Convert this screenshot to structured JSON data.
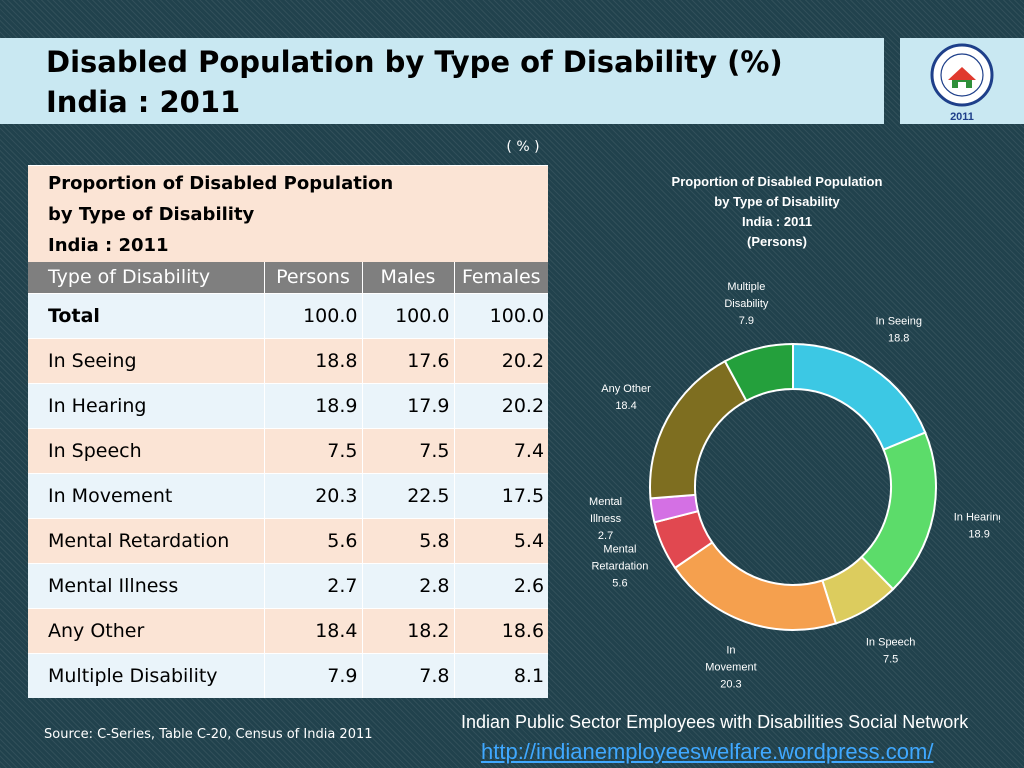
{
  "header": {
    "title_line1": "Disabled Population by Type of Disability (%)",
    "title_line2": "India : 2011"
  },
  "logo": {
    "year": "2011",
    "ring_text": "CENSUS OF INDIA"
  },
  "unit_note": "( % )",
  "table": {
    "caption_lines": [
      "Proportion of Disabled Population",
      "by Type of Disability",
      "India : 2011"
    ],
    "columns": [
      "Type of Disability",
      "Persons",
      "Males",
      "Females"
    ],
    "rows": [
      {
        "label": "Total",
        "persons": "100.0",
        "males": "100.0",
        "females": "100.0"
      },
      {
        "label": "In Seeing",
        "persons": "18.8",
        "males": "17.6",
        "females": "20.2"
      },
      {
        "label": "In Hearing",
        "persons": "18.9",
        "males": "17.9",
        "females": "20.2"
      },
      {
        "label": "In Speech",
        "persons": "7.5",
        "males": "7.5",
        "females": "7.4"
      },
      {
        "label": "In Movement",
        "persons": "20.3",
        "males": "22.5",
        "females": "17.5"
      },
      {
        "label": "Mental Retardation",
        "persons": "5.6",
        "males": "5.8",
        "females": "5.4"
      },
      {
        "label": "Mental Illness",
        "persons": "2.7",
        "males": "2.8",
        "females": "2.6"
      },
      {
        "label": "Any Other",
        "persons": "18.4",
        "males": "18.2",
        "females": "18.6"
      },
      {
        "label": "Multiple Disability",
        "persons": "7.9",
        "males": "7.8",
        "females": "8.1"
      }
    ]
  },
  "chart_data": {
    "type": "pie",
    "subtype": "donut",
    "title_lines": [
      "Proportion of Disabled Population",
      "by Type of Disability",
      "India : 2011",
      "(Persons)"
    ],
    "slices": [
      {
        "label": "In Seeing",
        "value": 18.8,
        "color": "#3cc8e4",
        "label_lines": [
          "In Seeing",
          "18.8"
        ]
      },
      {
        "label": "In Hearing",
        "value": 18.9,
        "color": "#5cdc6a",
        "label_lines": [
          "In Hearing",
          "18.9"
        ]
      },
      {
        "label": "In Speech",
        "value": 7.5,
        "color": "#dccc5e",
        "label_lines": [
          "In Speech",
          "7.5"
        ]
      },
      {
        "label": "In Movement",
        "value": 20.3,
        "color": "#f5a04e",
        "label_lines": [
          "In",
          "Movement",
          "20.3"
        ]
      },
      {
        "label": "Mental Retardation",
        "value": 5.6,
        "color": "#e14850",
        "label_lines": [
          "Mental",
          "Retardation",
          "5.6"
        ]
      },
      {
        "label": "Mental Illness",
        "value": 2.7,
        "color": "#d470e4",
        "label_lines": [
          "Mental",
          "Illness",
          "2.7"
        ]
      },
      {
        "label": "Any Other",
        "value": 18.4,
        "color": "#7e6e20",
        "label_lines": [
          "Any Other",
          "18.4"
        ]
      },
      {
        "label": "Multiple Disability",
        "value": 7.9,
        "color": "#24a03c",
        "label_lines": [
          "Multiple",
          "Disability",
          "7.9"
        ]
      }
    ],
    "start_angle_deg": 0,
    "direction": "clockwise",
    "label_color": "#ffffff"
  },
  "footer": {
    "source": "Source: C-Series, Table C-20, Census of India 2011",
    "network": "Indian Public Sector Employees with Disabilities Social Network",
    "link": "http://indianemployeeswelfare.wordpress.com/"
  }
}
